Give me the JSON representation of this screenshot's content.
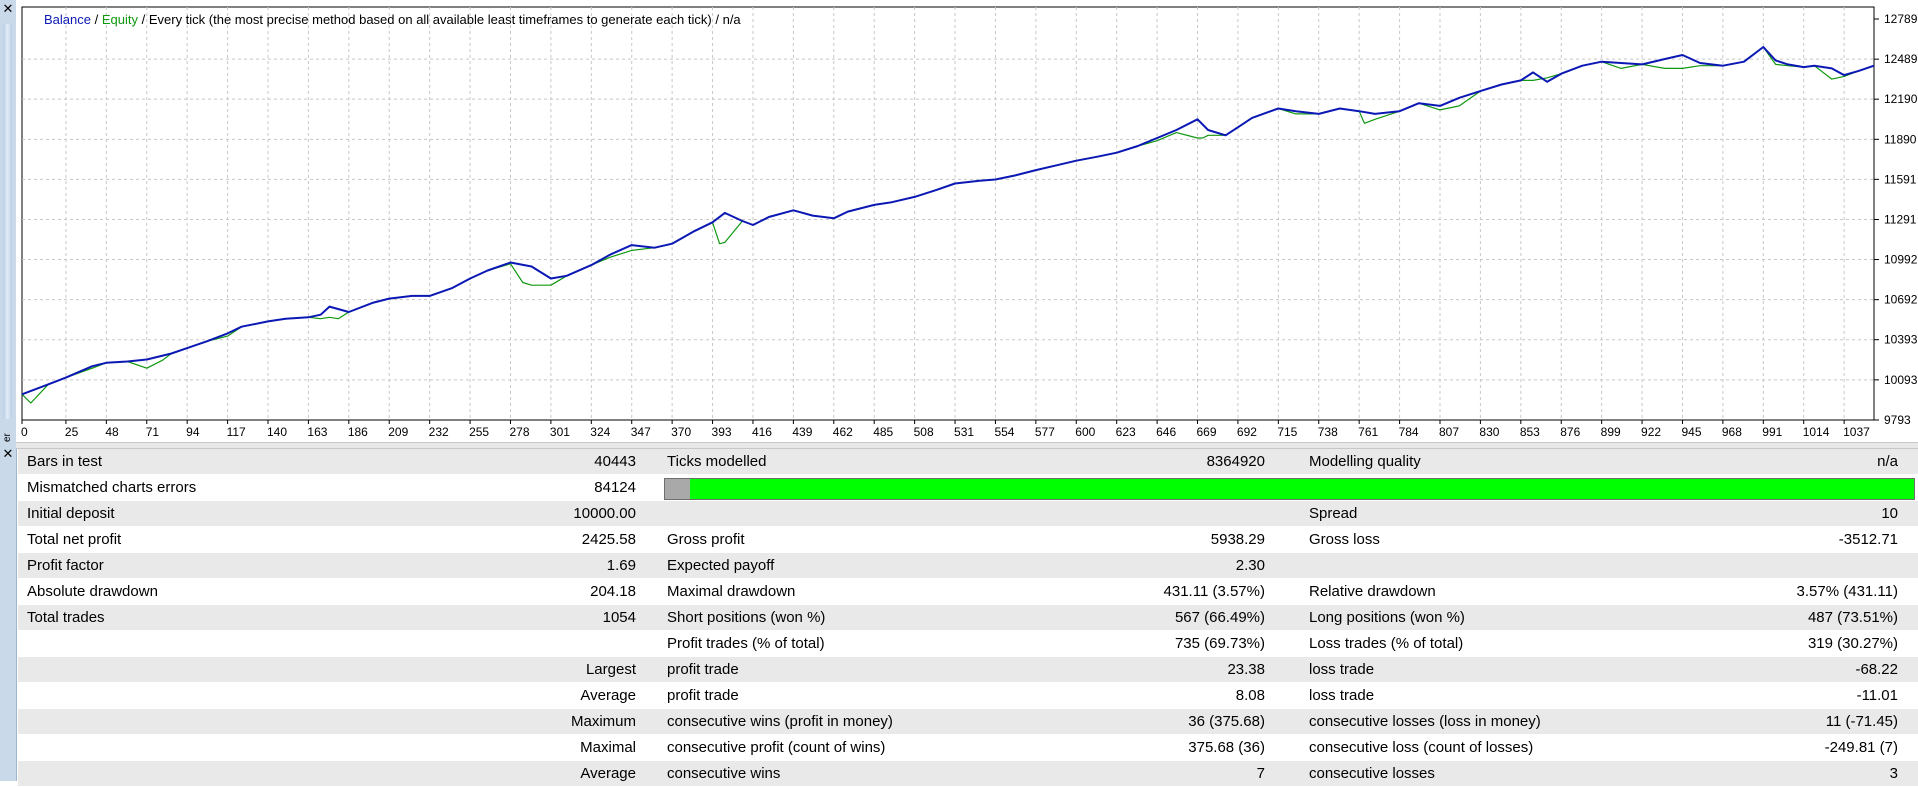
{
  "legend": {
    "balance": "Balance",
    "equity": "Equity",
    "description": "Every tick (the most precise method based on all available least timeframes to generate each tick)",
    "suffix": "n/a"
  },
  "left_strip_label": "er",
  "colors": {
    "balance": "#0b18b4",
    "equity": "#109810",
    "progress_fill": "#00ff00",
    "progress_gray": "#a9a9a9",
    "row_gray": "#e9e9e9"
  },
  "chart_data": {
    "type": "line",
    "xlim": [
      0,
      1054
    ],
    "ylim": [
      9793,
      12789
    ],
    "x_ticks": [
      "0",
      "25",
      "48",
      "71",
      "94",
      "117",
      "140",
      "163",
      "186",
      "209",
      "232",
      "255",
      "278",
      "301",
      "324",
      "347",
      "370",
      "393",
      "416",
      "439",
      "462",
      "485",
      "508",
      "531",
      "554",
      "577",
      "600",
      "623",
      "646",
      "669",
      "692",
      "715",
      "738",
      "761",
      "784",
      "807",
      "830",
      "853",
      "876",
      "899",
      "922",
      "945",
      "968",
      "991",
      "1014",
      "1037"
    ],
    "y_ticks": [
      "12789",
      "12489",
      "12190",
      "11890",
      "11591",
      "11291",
      "10992",
      "10692",
      "10393",
      "10093",
      "9793"
    ],
    "grid": true,
    "series": [
      {
        "name": "Balance",
        "x": [
          0,
          15,
          25,
          40,
          48,
          60,
          71,
          85,
          94,
          105,
          117,
          125,
          140,
          150,
          163,
          170,
          175,
          186,
          200,
          209,
          222,
          232,
          245,
          255,
          265,
          278,
          290,
          301,
          310,
          324,
          335,
          347,
          360,
          370,
          382,
          393,
          400,
          410,
          416,
          425,
          439,
          450,
          462,
          470,
          485,
          495,
          508,
          520,
          531,
          545,
          554,
          565,
          577,
          590,
          600,
          612,
          623,
          635,
          646,
          657,
          669,
          675,
          685,
          692,
          700,
          715,
          725,
          738,
          750,
          761,
          770,
          784,
          795,
          807,
          818,
          830,
          842,
          853,
          860,
          868,
          876,
          888,
          899,
          910,
          922,
          935,
          945,
          955,
          968,
          980,
          991,
          998,
          1005,
          1014,
          1020,
          1030,
          1037,
          1045,
          1054
        ],
        "y": [
          9985,
          10060,
          10110,
          10195,
          10220,
          10230,
          10245,
          10290,
          10330,
          10380,
          10440,
          10490,
          10530,
          10550,
          10560,
          10580,
          10640,
          10600,
          10670,
          10700,
          10720,
          10720,
          10780,
          10850,
          10910,
          10970,
          10940,
          10850,
          10870,
          10950,
          11030,
          11100,
          11080,
          11110,
          11200,
          11270,
          11340,
          11280,
          11250,
          11310,
          11360,
          11320,
          11300,
          11350,
          11400,
          11420,
          11460,
          11510,
          11560,
          11580,
          11590,
          11620,
          11660,
          11700,
          11730,
          11760,
          11790,
          11840,
          11900,
          11960,
          12040,
          11960,
          11920,
          11980,
          12050,
          12120,
          12100,
          12080,
          12120,
          12100,
          12080,
          12100,
          12160,
          12140,
          12200,
          12250,
          12300,
          12330,
          12390,
          12320,
          12380,
          12440,
          12470,
          12460,
          12450,
          12490,
          12520,
          12460,
          12440,
          12470,
          12580,
          12480,
          12450,
          12430,
          12440,
          12420,
          12370,
          12400,
          12440
        ]
      },
      {
        "name": "Equity",
        "x": [
          0,
          5,
          15,
          25,
          40,
          48,
          60,
          71,
          80,
          85,
          94,
          105,
          117,
          125,
          140,
          150,
          163,
          170,
          175,
          180,
          186,
          200,
          209,
          222,
          232,
          245,
          255,
          265,
          278,
          285,
          290,
          301,
          310,
          324,
          335,
          347,
          360,
          370,
          382,
          393,
          397,
          400,
          410,
          416,
          425,
          439,
          450,
          462,
          470,
          485,
          495,
          508,
          520,
          531,
          545,
          554,
          565,
          577,
          590,
          600,
          612,
          623,
          635,
          646,
          657,
          669,
          672,
          675,
          685,
          692,
          700,
          715,
          725,
          738,
          750,
          761,
          764,
          770,
          784,
          795,
          807,
          818,
          830,
          842,
          853,
          860,
          868,
          876,
          888,
          899,
          910,
          922,
          935,
          945,
          955,
          968,
          980,
          991,
          998,
          1005,
          1014,
          1020,
          1030,
          1037,
          1045,
          1054
        ],
        "y": [
          9985,
          9920,
          10060,
          10110,
          10180,
          10220,
          10230,
          10180,
          10240,
          10290,
          10330,
          10380,
          10420,
          10490,
          10530,
          10550,
          10560,
          10550,
          10560,
          10550,
          10600,
          10670,
          10700,
          10720,
          10720,
          10780,
          10850,
          10910,
          10960,
          10820,
          10800,
          10800,
          10870,
          10950,
          11010,
          11060,
          11080,
          11110,
          11200,
          11270,
          11110,
          11120,
          11280,
          11250,
          11310,
          11360,
          11320,
          11300,
          11350,
          11400,
          11420,
          11460,
          11510,
          11560,
          11580,
          11590,
          11620,
          11660,
          11700,
          11730,
          11760,
          11790,
          11840,
          11880,
          11940,
          11900,
          11900,
          11920,
          11920,
          11980,
          12050,
          12120,
          12080,
          12080,
          12120,
          12100,
          12010,
          12040,
          12100,
          12160,
          12110,
          12140,
          12250,
          12300,
          12330,
          12330,
          12350,
          12380,
          12440,
          12470,
          12420,
          12450,
          12420,
          12420,
          12440,
          12440,
          12470,
          12580,
          12450,
          12440,
          12430,
          12440,
          12340,
          12360,
          12400,
          12440
        ]
      }
    ]
  },
  "report": {
    "rows": [
      {
        "style": "gray",
        "c1": "Bars in test",
        "c2": "40443",
        "c3": "Ticks modelled",
        "c4": "8364920",
        "c5": "Modelling quality",
        "c6": "n/a"
      },
      {
        "style": "white",
        "c1": "Mismatched charts errors",
        "c2": "84124",
        "c3": "",
        "c4": "",
        "c5": "",
        "c6": ""
      },
      {
        "style": "gray",
        "c1": "Initial deposit",
        "c2": "10000.00",
        "c3": "",
        "c4": "",
        "c5": "Spread",
        "c6": "10"
      },
      {
        "style": "white",
        "c1": "Total net profit",
        "c2": "2425.58",
        "c3": "Gross profit",
        "c4": "5938.29",
        "c5": "Gross loss",
        "c6": "-3512.71"
      },
      {
        "style": "gray",
        "c1": "Profit factor",
        "c2": "1.69",
        "c3": "Expected payoff",
        "c4": "2.30",
        "c5": "",
        "c6": ""
      },
      {
        "style": "white",
        "c1": "Absolute drawdown",
        "c2": "204.18",
        "c3": "Maximal drawdown",
        "c4": "431.11 (3.57%)",
        "c5": "Relative drawdown",
        "c6": "3.57% (431.11)"
      },
      {
        "style": "gray",
        "c1": "Total trades",
        "c2": "1054",
        "c3": "Short positions (won %)",
        "c4": "567 (66.49%)",
        "c5": "Long positions (won %)",
        "c6": "487 (73.51%)"
      },
      {
        "style": "white",
        "c1": "",
        "c2": "",
        "c3": "Profit trades (% of total)",
        "c4": "735 (69.73%)",
        "c5": "Loss trades (% of total)",
        "c6": "319 (30.27%)"
      },
      {
        "style": "gray",
        "c1": "",
        "c2": "Largest",
        "c3": "profit trade",
        "c4": "23.38",
        "c5": "loss trade",
        "c6": "-68.22"
      },
      {
        "style": "white",
        "c1": "",
        "c2": "Average",
        "c3": "profit trade",
        "c4": "8.08",
        "c5": "loss trade",
        "c6": "-11.01"
      },
      {
        "style": "gray",
        "c1": "",
        "c2": "Maximum",
        "c3": "consecutive wins (profit in money)",
        "c4": "36 (375.68)",
        "c5": "consecutive losses (loss in money)",
        "c6": "11 (-71.45)"
      },
      {
        "style": "white",
        "c1": "",
        "c2": "Maximal",
        "c3": "consecutive profit (count of wins)",
        "c4": "375.68 (36)",
        "c5": "consecutive loss (count of losses)",
        "c6": "-249.81 (7)"
      },
      {
        "style": "gray",
        "c1": "",
        "c2": "Average",
        "c3": "consecutive wins",
        "c4": "7",
        "c5": "consecutive losses",
        "c6": "3"
      }
    ],
    "quality_bar": {
      "gray_fraction": 0.02
    }
  }
}
